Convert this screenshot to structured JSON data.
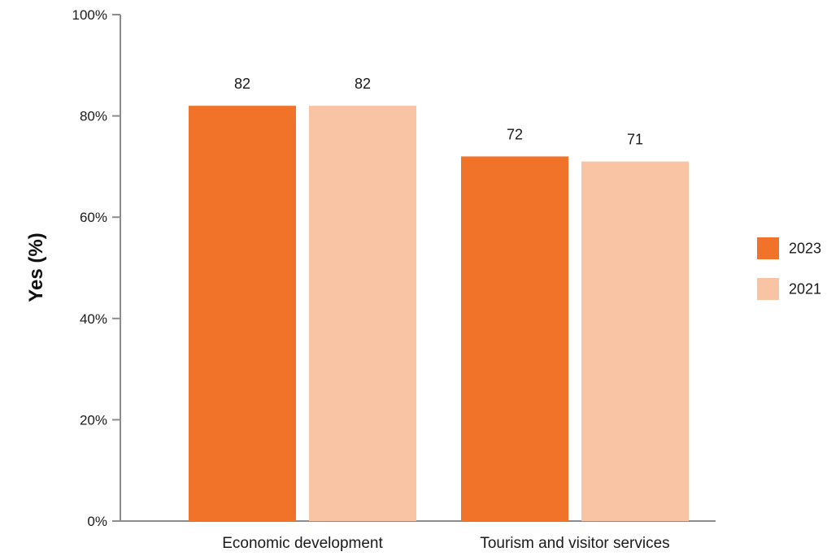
{
  "chart_data": {
    "type": "bar",
    "categories": [
      "Economic development",
      "Tourism and visitor services"
    ],
    "series": [
      {
        "name": "2023",
        "values": [
          82,
          72
        ],
        "color": "#f07329"
      },
      {
        "name": "2021",
        "values": [
          82,
          71
        ],
        "color": "#f9c4a3"
      }
    ],
    "ylabel": "Yes (%)",
    "ylim": [
      0,
      100
    ],
    "yticks": [
      {
        "value": 0,
        "label": "0%"
      },
      {
        "value": 20,
        "label": "20%"
      },
      {
        "value": 40,
        "label": "40%"
      },
      {
        "value": 60,
        "label": "60%"
      },
      {
        "value": 80,
        "label": "80%"
      },
      {
        "value": 100,
        "label": "100%"
      }
    ],
    "grid": false,
    "legend": "right",
    "axis_color": "#8c8c8c"
  }
}
